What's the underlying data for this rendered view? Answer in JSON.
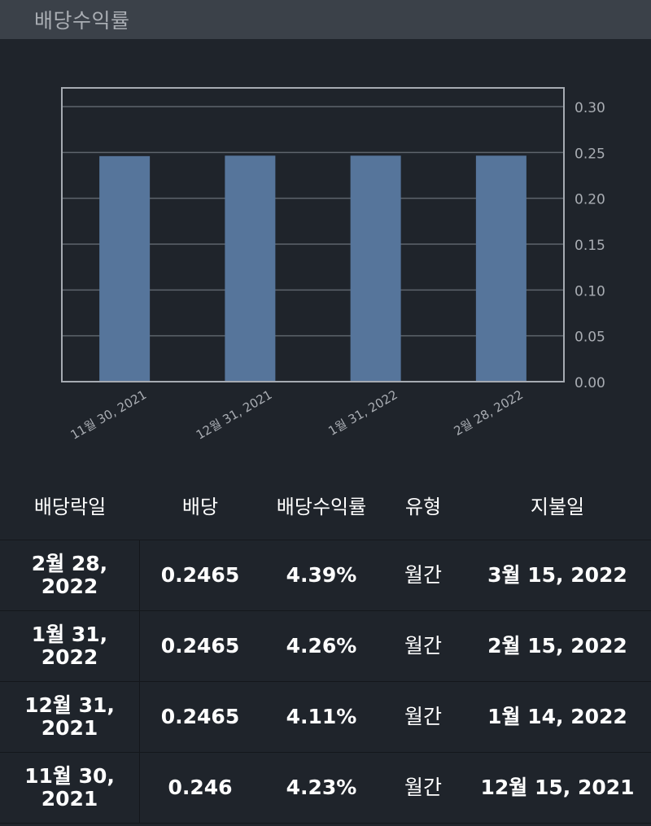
{
  "header": {
    "title": "배당수익률"
  },
  "colors": {
    "background": "#1f242b",
    "header_bg": "#3b4149",
    "bar": "#56759b",
    "grid": "#5e646c",
    "axis_text": "#a9adb3"
  },
  "chart_data": {
    "type": "bar",
    "title": "배당수익률",
    "categories": [
      "11월 30, 2021",
      "12월 31, 2021",
      "1월 31, 2022",
      "2월 28, 2022"
    ],
    "values": [
      0.246,
      0.2465,
      0.2465,
      0.2465
    ],
    "xlabel": "",
    "ylabel": "",
    "ylim": [
      0,
      0.32
    ],
    "yticks": [
      "0.00",
      "0.05",
      "0.10",
      "0.15",
      "0.20",
      "0.25",
      "0.30"
    ],
    "y_axis_position": "right",
    "x_label_rotation": -30,
    "grid": true,
    "legend": false
  },
  "table": {
    "headers": [
      "배당락일",
      "배당",
      "배당수익률",
      "유형",
      "지불일"
    ],
    "rows": [
      {
        "ex_date_line1": "2월 28,",
        "ex_date_line2": "2022",
        "dividend": "0.2465",
        "yield": "4.39%",
        "type": "월간",
        "pay_date": "3월 15, 2022"
      },
      {
        "ex_date_line1": "1월 31,",
        "ex_date_line2": "2022",
        "dividend": "0.2465",
        "yield": "4.26%",
        "type": "월간",
        "pay_date": "2월 15, 2022"
      },
      {
        "ex_date_line1": "12월 31,",
        "ex_date_line2": "2021",
        "dividend": "0.2465",
        "yield": "4.11%",
        "type": "월간",
        "pay_date": "1월 14, 2022"
      },
      {
        "ex_date_line1": "11월 30,",
        "ex_date_line2": "2021",
        "dividend": "0.246",
        "yield": "4.23%",
        "type": "월간",
        "pay_date": "12월 15, 2021"
      }
    ]
  }
}
